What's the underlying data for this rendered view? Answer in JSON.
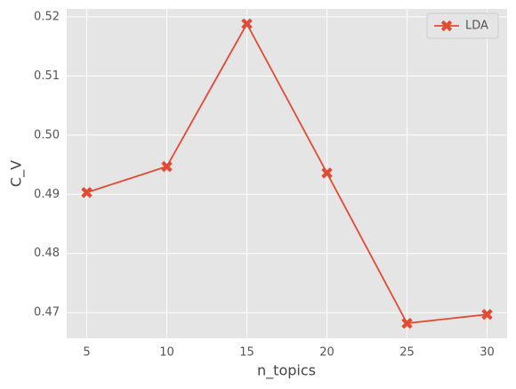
{
  "chart_data": {
    "type": "line",
    "x_label": "n_topics",
    "y_label": "C_V",
    "x": [
      5,
      10,
      15,
      20,
      25,
      30
    ],
    "series": [
      {
        "name": "LDA",
        "color": "#e24a33",
        "values": [
          0.4903,
          0.4947,
          0.5188,
          0.4936,
          0.4682,
          0.4697
        ]
      }
    ],
    "xlim": [
      3.75,
      31.25
    ],
    "xticks": [
      5,
      10,
      15,
      20,
      25,
      30
    ],
    "ylim": [
      0.46567,
      0.52133
    ],
    "yticks": [
      0.47,
      0.48,
      0.49,
      {
        "value": 0.5,
        "label": "0.50"
      },
      0.51,
      0.52
    ],
    "grid": true,
    "legend": "upper right"
  }
}
